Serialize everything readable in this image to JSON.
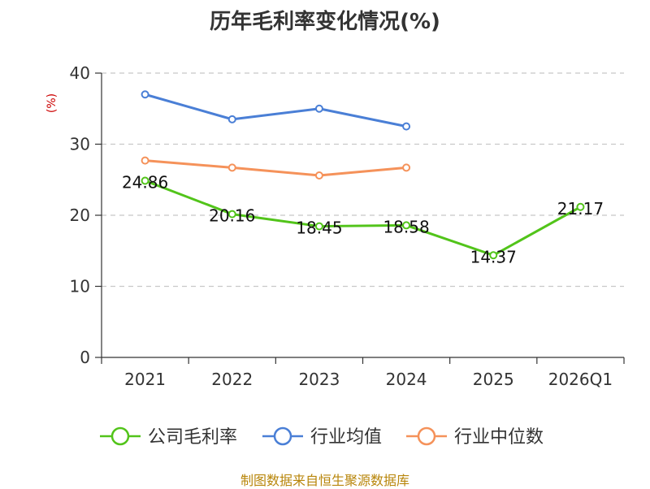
{
  "chart_data": {
    "type": "line",
    "title": "历年毛利率变化情况(%)",
    "ylabel": "(%)",
    "xlabel": "",
    "categories": [
      "2021",
      "2022",
      "2023",
      "2024",
      "2025",
      "2026Q1"
    ],
    "ylim": [
      0,
      40
    ],
    "yticks": [
      0,
      10,
      20,
      30,
      40
    ],
    "grid": true,
    "legend_position": "bottom",
    "series": [
      {
        "name": "公司毛利率",
        "color": "#52c41a",
        "values": [
          24.86,
          20.16,
          18.45,
          18.58,
          14.37,
          21.17
        ],
        "labels": [
          "24.86",
          "20.16",
          "18.45",
          "18.58",
          "14.37",
          "21.17"
        ],
        "show_labels": true
      },
      {
        "name": "行业均值",
        "color": "#4a7fd6",
        "values": [
          37.0,
          33.5,
          35.0,
          32.5,
          null,
          null
        ],
        "show_labels": false
      },
      {
        "name": "行业中位数",
        "color": "#f5925a",
        "values": [
          27.7,
          26.7,
          25.6,
          26.7,
          null,
          null
        ],
        "show_labels": false
      }
    ]
  },
  "source": "制图数据来自恒生聚源数据库",
  "ylabel_color": "#cc0000"
}
